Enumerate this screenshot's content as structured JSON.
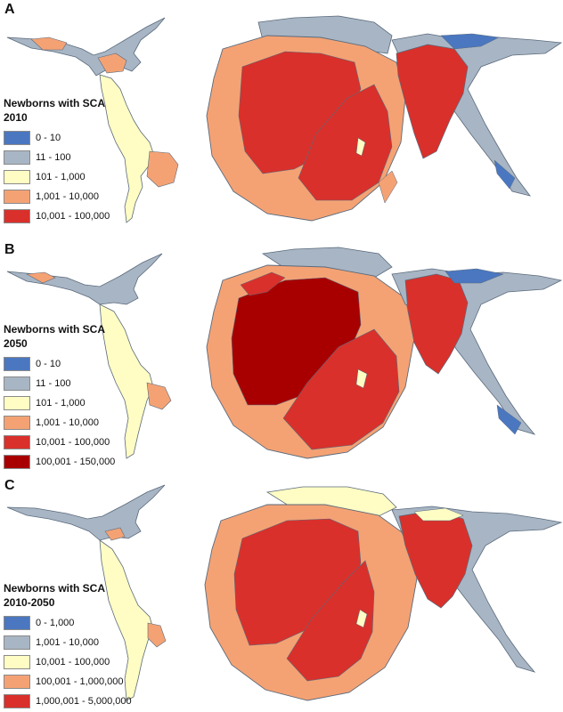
{
  "panels": [
    {
      "letter": "A",
      "legend_title": "Newborns with SCA",
      "period": "2010",
      "legend": [
        {
          "label": "0 - 10",
          "color": "#4a77c0"
        },
        {
          "label": "11 - 100",
          "color": "#a8b5c4"
        },
        {
          "label": "101 - 1,000",
          "color": "#fffdc4"
        },
        {
          "label": "1,001 - 10,000",
          "color": "#f4a274"
        },
        {
          "label": "10,001 - 100,000",
          "color": "#d9302b"
        }
      ]
    },
    {
      "letter": "B",
      "legend_title": "Newborns with SCA",
      "period": "2050",
      "legend": [
        {
          "label": "0 - 10",
          "color": "#4a77c0"
        },
        {
          "label": "11 - 100",
          "color": "#a8b5c4"
        },
        {
          "label": "101 - 1,000",
          "color": "#fffdc4"
        },
        {
          "label": "1,001 - 10,000",
          "color": "#f4a274"
        },
        {
          "label": "10,001 - 100,000",
          "color": "#d9302b"
        },
        {
          "label": "100,001 - 150,000",
          "color": "#a80000"
        }
      ]
    },
    {
      "letter": "C",
      "legend_title": "Newborns with SCA",
      "period": "2010-2050",
      "legend": [
        {
          "label": "0 - 1,000",
          "color": "#4a77c0"
        },
        {
          "label": "1,001 - 10,000",
          "color": "#a8b5c4"
        },
        {
          "label": "10,001 - 100,000",
          "color": "#fffdc4"
        },
        {
          "label": "100,001 - 1,000,000",
          "color": "#f4a274"
        },
        {
          "label": "1,000,001 - 5,000,000",
          "color": "#d9302b"
        }
      ]
    }
  ],
  "colors": {
    "border": "#6f7d8c",
    "outline": "#5a6a7c"
  }
}
